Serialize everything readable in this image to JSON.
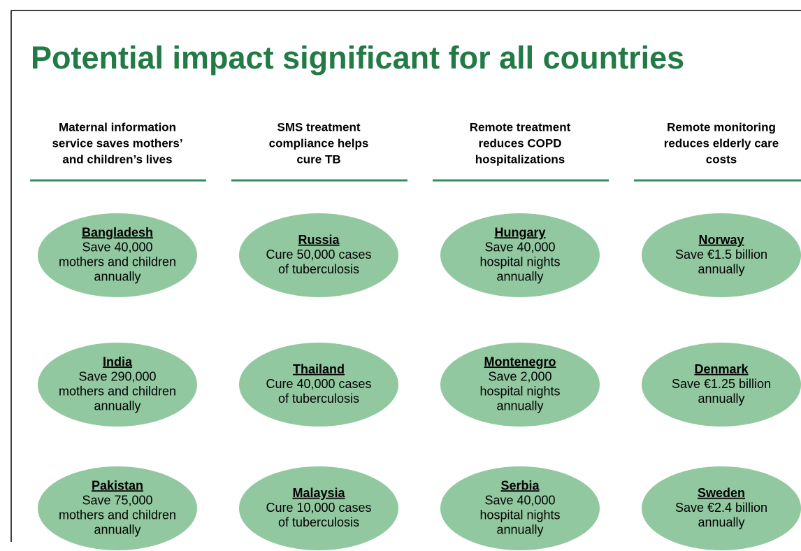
{
  "title": "Potential impact significant for all countries",
  "columns": [
    {
      "header": [
        "Maternal information",
        "service saves mothers’",
        "and children’s lives"
      ],
      "items": [
        {
          "country": "Bangladesh",
          "lines": [
            "Save 40,000",
            "mothers and children",
            "annually"
          ]
        },
        {
          "country": "India",
          "lines": [
            "Save 290,000",
            "mothers and children",
            "annually"
          ]
        },
        {
          "country": "Pakistan",
          "lines": [
            "Save 75,000",
            "mothers and children",
            "annually"
          ]
        }
      ]
    },
    {
      "header": [
        "SMS treatment",
        "compliance helps",
        "cure TB"
      ],
      "items": [
        {
          "country": "Russia",
          "lines": [
            "Cure 50,000 cases",
            "of tuberculosis"
          ]
        },
        {
          "country": "Thailand",
          "lines": [
            "Cure 40,000 cases",
            "of tuberculosis"
          ]
        },
        {
          "country": "Malaysia",
          "lines": [
            "Cure 10,000 cases",
            "of tuberculosis"
          ]
        }
      ]
    },
    {
      "header": [
        "Remote treatment",
        "reduces COPD",
        "hospitalizations"
      ],
      "items": [
        {
          "country": "Hungary",
          "lines": [
            "Save 40,000",
            "hospital nights",
            "annually"
          ]
        },
        {
          "country": "Montenegro",
          "lines": [
            "Save 2,000",
            "hospital nights",
            "annually"
          ]
        },
        {
          "country": "Serbia",
          "lines": [
            "Save 40,000",
            "hospital nights",
            "annually"
          ]
        }
      ]
    },
    {
      "header": [
        "Remote monitoring",
        "reduces elderly care",
        "costs"
      ],
      "items": [
        {
          "country": "Norway",
          "lines": [
            "Save €1.5 billion",
            "annually"
          ]
        },
        {
          "country": "Denmark",
          "lines": [
            "Save €1.25 billion",
            "annually"
          ]
        },
        {
          "country": "Sweden",
          "lines": [
            "Save €2.4 billion",
            "annually"
          ]
        }
      ]
    }
  ]
}
